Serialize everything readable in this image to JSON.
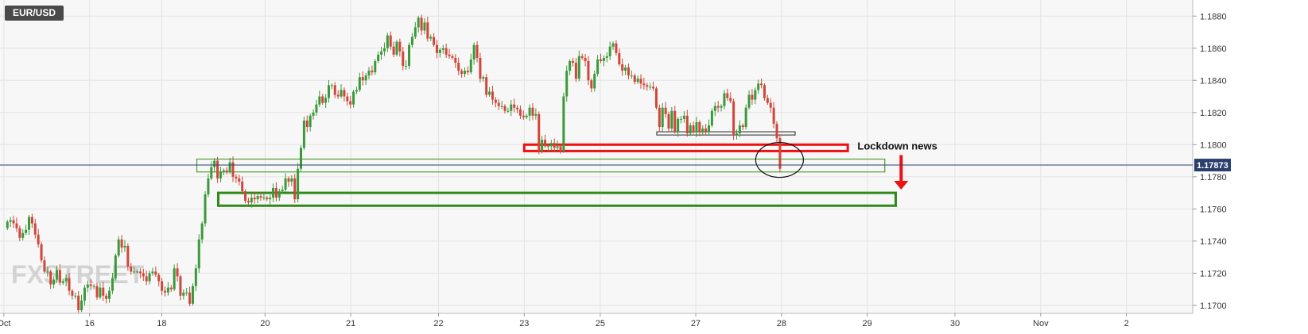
{
  "chart_data": {
    "type": "candlestick",
    "symbol": "EUR/USD",
    "watermark": "FXSTREET",
    "current_price": 1.17873,
    "current_price_label": "1.17873",
    "ylim": [
      1.1695,
      1.189
    ],
    "xlim": [
      0,
      30.6
    ],
    "y_ticks": [
      {
        "value": 1.17,
        "label": "1.1700"
      },
      {
        "value": 1.172,
        "label": "1.1720"
      },
      {
        "value": 1.174,
        "label": "1.1740"
      },
      {
        "value": 1.176,
        "label": "1.1760"
      },
      {
        "value": 1.178,
        "label": "1.1780"
      },
      {
        "value": 1.18,
        "label": "1.1800"
      },
      {
        "value": 1.182,
        "label": "1.1820"
      },
      {
        "value": 1.184,
        "label": "1.1840"
      },
      {
        "value": 1.186,
        "label": "1.1860"
      },
      {
        "value": 1.188,
        "label": "1.1880"
      }
    ],
    "x_ticks": [
      {
        "value": 0.1,
        "label": "Oct"
      },
      {
        "value": 2.3,
        "label": "16"
      },
      {
        "value": 4.15,
        "label": "18"
      },
      {
        "value": 6.8,
        "label": "20"
      },
      {
        "value": 9.0,
        "label": "21"
      },
      {
        "value": 11.25,
        "label": "22"
      },
      {
        "value": 13.45,
        "label": "23"
      },
      {
        "value": 15.4,
        "label": "25"
      },
      {
        "value": 17.85,
        "label": "27"
      },
      {
        "value": 20.05,
        "label": "28"
      },
      {
        "value": 22.25,
        "label": "29"
      },
      {
        "value": 24.5,
        "label": "30"
      },
      {
        "value": 26.7,
        "label": "Nov"
      },
      {
        "value": 28.9,
        "label": "2"
      }
    ],
    "candles_close": [
      1.1752,
      1.1753,
      1.1751,
      1.1748,
      1.1742,
      1.1745,
      1.1747,
      1.1755,
      1.1751,
      1.1744,
      1.1738,
      1.1728,
      1.1721,
      1.1721,
      1.1713,
      1.1716,
      1.1722,
      1.1714,
      1.1715,
      1.1717,
      1.1709,
      1.1706,
      1.1706,
      1.1697,
      1.1703,
      1.1711,
      1.1713,
      1.1712,
      1.1712,
      1.1705,
      1.1711,
      1.1706,
      1.1704,
      1.1709,
      1.1717,
      1.1731,
      1.1741,
      1.1736,
      1.1737,
      1.1724,
      1.1721,
      1.1721,
      1.1721,
      1.172,
      1.1718,
      1.1715,
      1.172,
      1.1721,
      1.1719,
      1.1715,
      1.1709,
      1.1708,
      1.1711,
      1.171,
      1.1723,
      1.1718,
      1.1706,
      1.1708,
      1.1708,
      1.1701,
      1.1712,
      1.1723,
      1.1741,
      1.1751,
      1.1769,
      1.1779,
      1.1786,
      1.179,
      1.1779,
      1.1783,
      1.1784,
      1.1783,
      1.1789,
      1.178,
      1.1779,
      1.1777,
      1.1771,
      1.1765,
      1.1764,
      1.1767,
      1.1766,
      1.1768,
      1.1767,
      1.1767,
      1.1766,
      1.1767,
      1.1773,
      1.1767,
      1.1771,
      1.1772,
      1.1779,
      1.1777,
      1.1779,
      1.1766,
      1.1785,
      1.1798,
      1.1815,
      1.1811,
      1.1818,
      1.182,
      1.1825,
      1.183,
      1.1826,
      1.1829,
      1.1837,
      1.1837,
      1.1831,
      1.183,
      1.1834,
      1.183,
      1.1827,
      1.1825,
      1.1833,
      1.1834,
      1.1842,
      1.184,
      1.1843,
      1.1846,
      1.1845,
      1.1852,
      1.1856,
      1.1858,
      1.186,
      1.1868,
      1.1861,
      1.1856,
      1.1864,
      1.1858,
      1.1849,
      1.1849,
      1.1862,
      1.1867,
      1.1873,
      1.1879,
      1.1871,
      1.1876,
      1.1866,
      1.1867,
      1.1862,
      1.1857,
      1.1859,
      1.186,
      1.1856,
      1.1855,
      1.1854,
      1.1851,
      1.1846,
      1.1844,
      1.1846,
      1.1845,
      1.1853,
      1.1862,
      1.1854,
      1.1841,
      1.1842,
      1.1831,
      1.1833,
      1.1828,
      1.1826,
      1.1824,
      1.1824,
      1.1821,
      1.1821,
      1.1825,
      1.1823,
      1.1822,
      1.1818,
      1.1817,
      1.1818,
      1.1823,
      1.1818,
      1.1819,
      1.1796,
      1.1803,
      1.1799,
      1.1799,
      1.1801,
      1.1798,
      1.1799,
      1.1796,
      1.183,
      1.1846,
      1.1852,
      1.1851,
      1.1841,
      1.1855,
      1.1854,
      1.1852,
      1.184,
      1.1835,
      1.1844,
      1.1853,
      1.1852,
      1.1854,
      1.1855,
      1.1861,
      1.1863,
      1.1857,
      1.185,
      1.1846,
      1.1848,
      1.1843,
      1.1843,
      1.1839,
      1.1841,
      1.1838,
      1.1837,
      1.1836,
      1.1836,
      1.1835,
      1.1823,
      1.1811,
      1.1823,
      1.1819,
      1.181,
      1.1821,
      1.1808,
      1.1816,
      1.1816,
      1.1818,
      1.1807,
      1.1812,
      1.1808,
      1.1814,
      1.1808,
      1.181,
      1.1808,
      1.1812,
      1.1821,
      1.1824,
      1.1823,
      1.1824,
      1.1832,
      1.1829,
      1.1827,
      1.1806,
      1.1807,
      1.1812,
      1.1811,
      1.1823,
      1.1831,
      1.1828,
      1.1834,
      1.1838,
      1.1837,
      1.1829,
      1.1826,
      1.1823,
      1.1813,
      1.1804,
      1.1785
    ],
    "annotations": [
      {
        "text": "Lockdown news",
        "x": 22.0,
        "y": 1.1797
      },
      {
        "type": "arrow",
        "direction": "down",
        "color": "#ee1111",
        "x": 23.12,
        "y_from": 1.17935,
        "y_to": 1.17725
      },
      {
        "type": "zone",
        "color": "#ee1111",
        "x0": 13.45,
        "x1": 21.75,
        "y0": 1.18,
        "y1": 1.1796
      },
      {
        "type": "zone",
        "color": "#444444",
        "x0": 16.85,
        "x1": 20.4,
        "y0": 1.1808,
        "y1": 1.1806
      },
      {
        "type": "zone",
        "color": "#4f9f2f",
        "x0": 5.05,
        "x1": 22.7,
        "y0": 1.1791,
        "y1": 1.1783
      },
      {
        "type": "zone",
        "color": "#2e8b1a",
        "x0": 5.6,
        "x1": 22.98,
        "y0": 1.177,
        "y1": 1.1762
      },
      {
        "type": "circle",
        "color": "#111111",
        "x": 20.0,
        "y": 1.17905
      }
    ],
    "colors": {
      "up": "#3a9a3a",
      "down": "#d0463a",
      "price_line": "#2a3f6e",
      "price_tag": "#2a3f6e"
    },
    "grid": true
  }
}
